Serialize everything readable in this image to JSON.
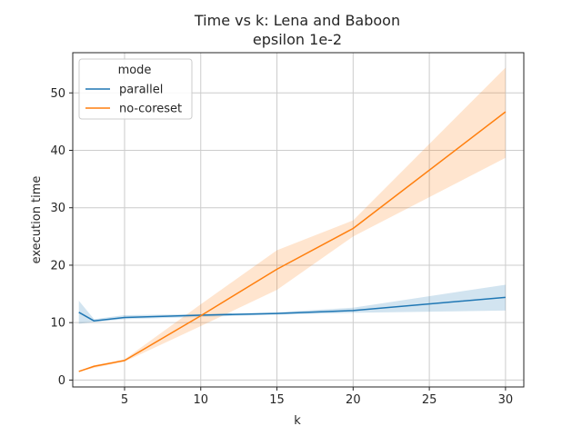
{
  "chart_data": {
    "type": "line",
    "title": "Time vs k: Lena and Baboon",
    "subtitle": "epsilon 1e-2",
    "xlabel": "k",
    "ylabel": "execution time",
    "xlim": [
      1.6,
      31.2
    ],
    "ylim": [
      -1.2,
      57.0
    ],
    "xticks": [
      5,
      10,
      15,
      20,
      25,
      30
    ],
    "yticks": [
      0,
      10,
      20,
      30,
      40,
      50
    ],
    "grid": true,
    "legend": {
      "title": "mode",
      "position": "top-left"
    },
    "series": [
      {
        "name": "parallel",
        "color": "#1f77b4",
        "x": [
          2,
          3,
          5,
          10,
          15,
          20,
          30
        ],
        "y": [
          11.8,
          10.3,
          10.9,
          11.3,
          11.6,
          12.1,
          14.4
        ],
        "lower": [
          9.8,
          10.1,
          10.6,
          11.0,
          11.4,
          11.7,
          12.1
        ],
        "upper": [
          13.8,
          10.6,
          11.3,
          11.5,
          11.8,
          12.6,
          16.6
        ]
      },
      {
        "name": "no-coreset",
        "color": "#ff7f0e",
        "x": [
          2,
          3,
          5,
          10,
          15,
          20,
          30
        ],
        "y": [
          1.5,
          2.4,
          3.4,
          11.2,
          19.3,
          26.4,
          46.7
        ],
        "lower": [
          1.5,
          2.1,
          3.2,
          9.4,
          15.7,
          25.0,
          38.7
        ],
        "upper": [
          1.5,
          2.6,
          3.6,
          13.2,
          22.6,
          27.8,
          54.4
        ]
      }
    ]
  }
}
